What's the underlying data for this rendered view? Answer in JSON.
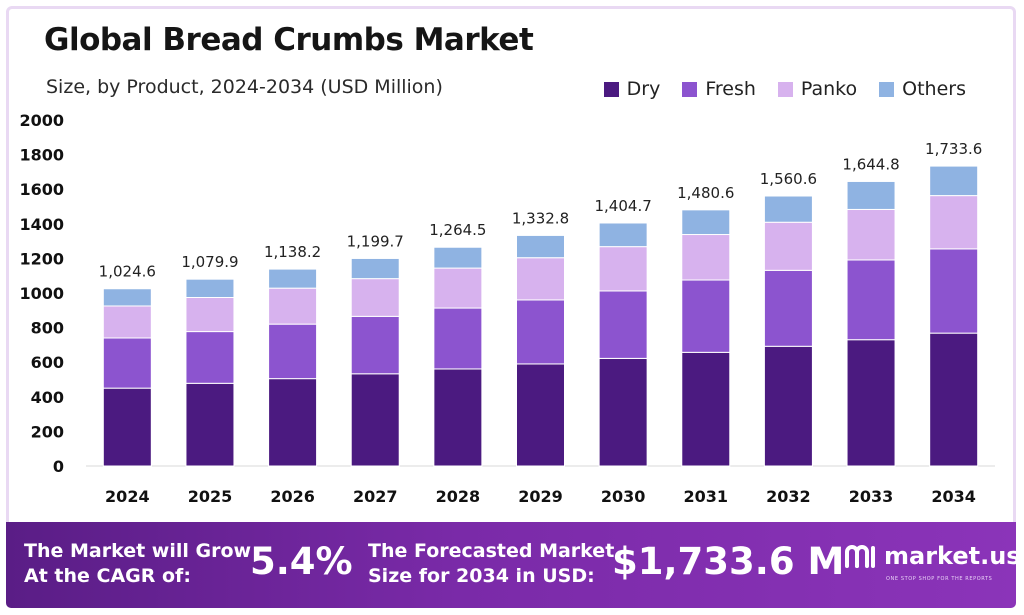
{
  "title": "Global Bread Crumbs Market",
  "subtitle": "Size, by Product, 2024-2034 (USD Million)",
  "colors": {
    "Dry": "#4b1a80",
    "Fresh": "#8c54cf",
    "Panko": "#d7b2ee",
    "Others": "#8fb3e2"
  },
  "chart_data": {
    "type": "bar",
    "stacked": true,
    "categories": [
      "2024",
      "2025",
      "2026",
      "2027",
      "2028",
      "2029",
      "2030",
      "2031",
      "2032",
      "2033",
      "2034"
    ],
    "series": [
      {
        "name": "Dry",
        "values": [
          450,
          478,
          505,
          533,
          561,
          590,
          622,
          657,
          692,
          730,
          768
        ]
      },
      {
        "name": "Fresh",
        "values": [
          290,
          299,
          315,
          332,
          352,
          370,
          390,
          418,
          439,
          461,
          487
        ]
      },
      {
        "name": "Panko",
        "values": [
          185,
          197,
          208,
          218,
          231,
          244,
          256,
          263,
          278,
          292,
          308
        ]
      },
      {
        "name": "Others",
        "values": [
          99.6,
          105.9,
          110.2,
          116.7,
          120.5,
          128.8,
          136.7,
          142.6,
          151.6,
          161.8,
          170.6
        ]
      }
    ],
    "totals": [
      "1,024.6",
      "1,079.9",
      "1,138.2",
      "1,199.7",
      "1,264.5",
      "1,332.8",
      "1,404.7",
      "1,480.6",
      "1,560.6",
      "1,644.8",
      "1,733.6"
    ],
    "ylim": [
      0,
      2000
    ],
    "yticks": [
      "0",
      "200",
      "400",
      "600",
      "800",
      "1000",
      "1200",
      "1400",
      "1600",
      "1800",
      "2000"
    ],
    "legend_position": "top-right",
    "grid": false
  },
  "footer": {
    "cagr_line1": "The Market will Grow",
    "cagr_line2": "At the CAGR of:",
    "cagr_value": "5.4%",
    "forecast_line1": "The Forecasted Market",
    "forecast_line2": "Size for 2034 in USD:",
    "forecast_value": "$1,733.6 M",
    "brand": "market.us",
    "tagline": "ONE STOP SHOP FOR THE REPORTS"
  }
}
